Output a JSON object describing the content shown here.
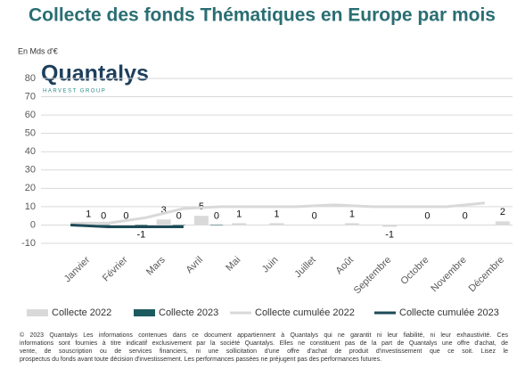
{
  "chart_data": {
    "type": "bar",
    "title": "Collecte des fonds Thématiques en Europe par mois",
    "y_label": "En Mds d'€",
    "logo": {
      "name": "Quantalys",
      "group": "HARVEST GROUP"
    },
    "categories": [
      "Janvier",
      "Février",
      "Mars",
      "Avril",
      "Mai",
      "Juin",
      "Juillet",
      "Août",
      "Septembre",
      "Octobre",
      "Novembre",
      "Décembre"
    ],
    "series": [
      {
        "name": "Collecte 2022",
        "kind": "bar",
        "color": "#d9d9d9",
        "values": [
          1,
          0,
          3,
          5,
          1,
          1,
          0,
          1,
          -1,
          0,
          0,
          2
        ]
      },
      {
        "name": "Collecte 2023",
        "kind": "bar",
        "color": "#1d5a5e",
        "values": [
          0,
          -1,
          0,
          0,
          null,
          null,
          null,
          null,
          null,
          null,
          null,
          null
        ]
      },
      {
        "name": "Collecte cumulée 2022",
        "kind": "line",
        "color": "#d9d9d9",
        "values": [
          1,
          1,
          4,
          9,
          10,
          10,
          10,
          11,
          10,
          10,
          10,
          12
        ]
      },
      {
        "name": "Collecte cumulée 2023",
        "kind": "line",
        "color": "#1d4a57",
        "values": [
          0,
          -1,
          -1,
          -1,
          null,
          null,
          null,
          null,
          null,
          null,
          null,
          null
        ]
      }
    ],
    "ylim": [
      -10,
      80
    ],
    "yticks": [
      -10,
      0,
      10,
      20,
      30,
      40,
      50,
      60,
      70,
      80
    ],
    "grid": true,
    "footer": [
      "© 2023 Quantalys Les informations contenues dans ce document appartiennent à Quantalys qui ne garantit ni leur fiabilité, ni leur exhaustivité. Ces",
      "informations sont fournies à titre indicatif exclusivement par la société Quantalys. Elles ne constituent pas de la part de Quantalys une offre d'achat, de",
      "vente, de souscription ou de services financiers, ni une sollicitation d'une offre d'achat de produit d'investissement que ce soit. Lisez le",
      "prospectus du fonds avant toute décision d'investissement. Les performances passées ne préjugent pas des performances futures."
    ]
  }
}
